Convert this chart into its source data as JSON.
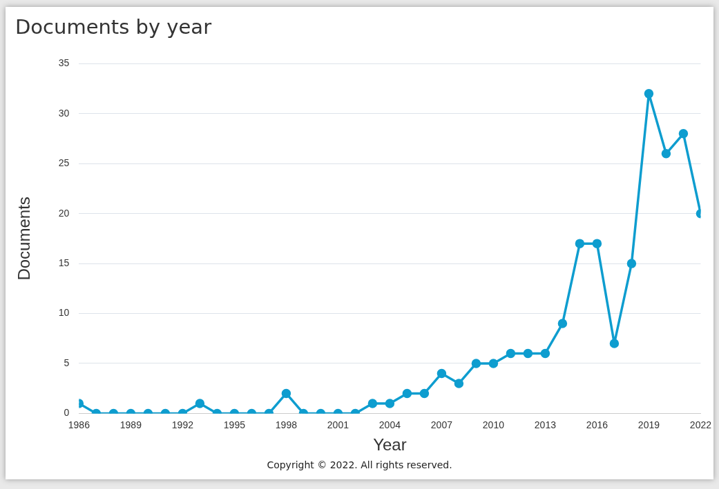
{
  "chart_data": {
    "type": "line",
    "title": "Documents by year",
    "xlabel": "Year",
    "ylabel": "Documents",
    "x": [
      1986,
      1987,
      1988,
      1989,
      1990,
      1991,
      1992,
      1993,
      1994,
      1995,
      1996,
      1997,
      1998,
      1999,
      2000,
      2001,
      2002,
      2003,
      2004,
      2005,
      2006,
      2007,
      2008,
      2009,
      2010,
      2011,
      2012,
      2013,
      2014,
      2015,
      2016,
      2017,
      2018,
      2019,
      2020,
      2021,
      2022
    ],
    "series": [
      {
        "color": "#0e9dcf",
        "values": [
          1,
          0,
          0,
          0,
          0,
          0,
          0,
          1,
          0,
          0,
          0,
          0,
          2,
          0,
          0,
          0,
          0,
          1,
          1,
          2,
          2,
          4,
          3,
          5,
          5,
          6,
          6,
          6,
          9,
          17,
          17,
          7,
          15,
          32,
          26,
          28,
          20
        ]
      }
    ],
    "xlim": [
      1986,
      2022
    ],
    "xticks": [
      1986,
      1989,
      1992,
      1995,
      1998,
      2001,
      2004,
      2007,
      2010,
      2013,
      2016,
      2019,
      2022
    ],
    "ylim": [
      0,
      35
    ],
    "yticks": [
      0,
      5,
      10,
      15,
      20,
      25,
      30,
      35
    ],
    "grid": "y",
    "legend": false,
    "marker": "circle",
    "line_style": "solid",
    "annotations": [
      "Copyright © 2022. All rights reserved."
    ]
  }
}
